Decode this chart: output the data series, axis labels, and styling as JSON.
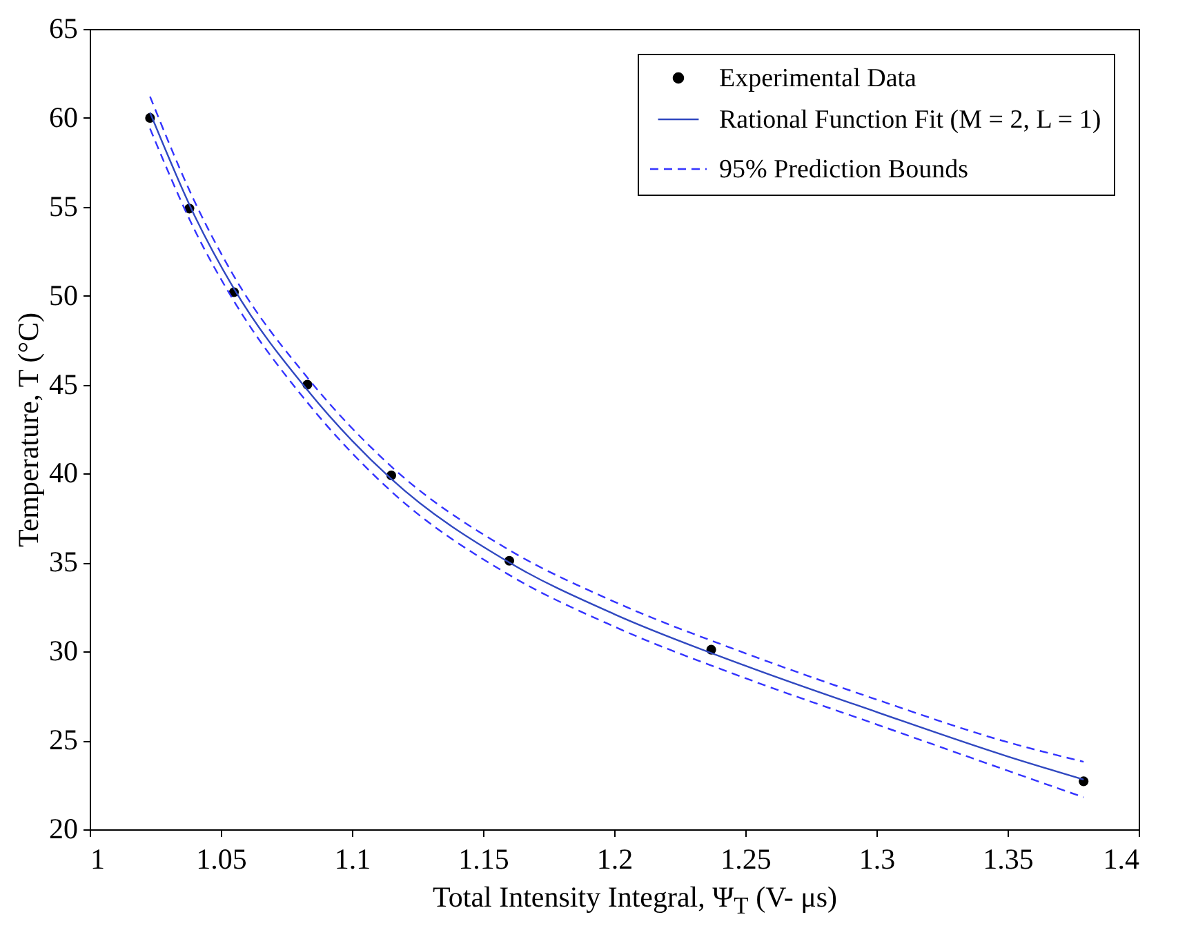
{
  "chart_data": {
    "type": "scatter",
    "xlabel": "Total Intensity Integral, Ψ$_{T}$ (V- μs)",
    "ylabel": "Temperature, T (°C)",
    "xlim": [
      1,
      1.4
    ],
    "xticks": [
      1,
      1.05,
      1.1,
      1.15,
      1.2,
      1.25,
      1.3,
      1.35,
      1.4
    ],
    "ylim": [
      20,
      65
    ],
    "yticks": [
      20,
      25,
      30,
      35,
      40,
      45,
      50,
      55,
      60,
      65
    ],
    "grid": false,
    "legend": "top right",
    "series": [
      {
        "name": "Experimental Data",
        "marker": "circle",
        "color": "#000000",
        "x": [
          1.023,
          1.038,
          1.055,
          1.083,
          1.115,
          1.16,
          1.237,
          1.379
        ],
        "values": [
          60.0,
          54.9,
          50.2,
          45.0,
          39.9,
          35.1,
          30.1,
          22.7
        ]
      },
      {
        "name": "Rational Function Fit (M = 2, L = 1)",
        "type": "line",
        "line_style": "solid",
        "marker": "none",
        "color": "#3048c0",
        "x": [
          1.023,
          1.04,
          1.055,
          1.083,
          1.115,
          1.16,
          1.2,
          1.25,
          1.3,
          1.35,
          1.379
        ],
        "values": [
          60.3,
          54.5,
          50.4,
          44.7,
          39.7,
          35.0,
          32.1,
          29.2,
          26.6,
          24.1,
          22.8
        ]
      },
      {
        "name": "95% Prediction Bounds",
        "type": "line",
        "line_style": "dashed",
        "marker": "none",
        "color": "#3333ff",
        "x": [
          1.023,
          1.04,
          1.055,
          1.083,
          1.115,
          1.16,
          1.2,
          1.25,
          1.3,
          1.35,
          1.379
        ],
        "values": [
          61.2,
          55.3,
          51.1,
          45.4,
          40.4,
          35.7,
          32.8,
          29.9,
          27.3,
          24.9,
          23.8
        ]
      },
      {
        "type": "line",
        "line_style": "dashed",
        "marker": "none",
        "color": "#3333ff",
        "x": [
          1.023,
          1.04,
          1.055,
          1.083,
          1.115,
          1.16,
          1.2,
          1.25,
          1.3,
          1.35,
          1.379
        ],
        "values": [
          59.4,
          53.7,
          49.7,
          44.0,
          39.0,
          34.3,
          31.4,
          28.5,
          25.9,
          23.3,
          21.8
        ]
      }
    ]
  }
}
